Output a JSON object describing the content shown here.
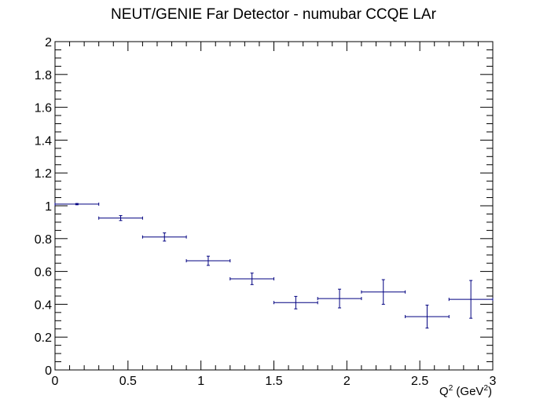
{
  "chart_data": {
    "type": "scatter",
    "title": "NEUT/GENIE Far Detector - numubar CCQE LAr",
    "xlabel": {
      "base": "Q",
      "sup1": "2",
      "mid": " (GeV",
      "sup2": "2",
      "end": ")"
    },
    "ylabel": "",
    "xlim": [
      0,
      3
    ],
    "ylim": [
      0,
      2
    ],
    "xticks": [
      "0",
      "0.5",
      "1",
      "1.5",
      "2",
      "2.5",
      "3"
    ],
    "yticks": [
      "0",
      "0.2",
      "0.4",
      "0.6",
      "0.8",
      "1",
      "1.2",
      "1.4",
      "1.6",
      "1.8",
      "2"
    ],
    "grid": false,
    "series": [
      {
        "color": "#000080",
        "points": [
          {
            "x": 0.15,
            "xerr": 0.15,
            "y": 1.01,
            "yerr": 0.004
          },
          {
            "x": 0.45,
            "xerr": 0.15,
            "y": 0.925,
            "yerr": 0.015
          },
          {
            "x": 0.75,
            "xerr": 0.15,
            "y": 0.81,
            "yerr": 0.025
          },
          {
            "x": 1.05,
            "xerr": 0.15,
            "y": 0.665,
            "yerr": 0.028
          },
          {
            "x": 1.35,
            "xerr": 0.15,
            "y": 0.555,
            "yerr": 0.035
          },
          {
            "x": 1.65,
            "xerr": 0.15,
            "y": 0.41,
            "yerr": 0.038
          },
          {
            "x": 1.95,
            "xerr": 0.15,
            "y": 0.435,
            "yerr": 0.057
          },
          {
            "x": 2.25,
            "xerr": 0.15,
            "y": 0.475,
            "yerr": 0.075
          },
          {
            "x": 2.55,
            "xerr": 0.15,
            "y": 0.325,
            "yerr": 0.07
          },
          {
            "x": 2.85,
            "xerr": 0.15,
            "y": 0.43,
            "yerr": 0.115
          }
        ]
      }
    ]
  }
}
